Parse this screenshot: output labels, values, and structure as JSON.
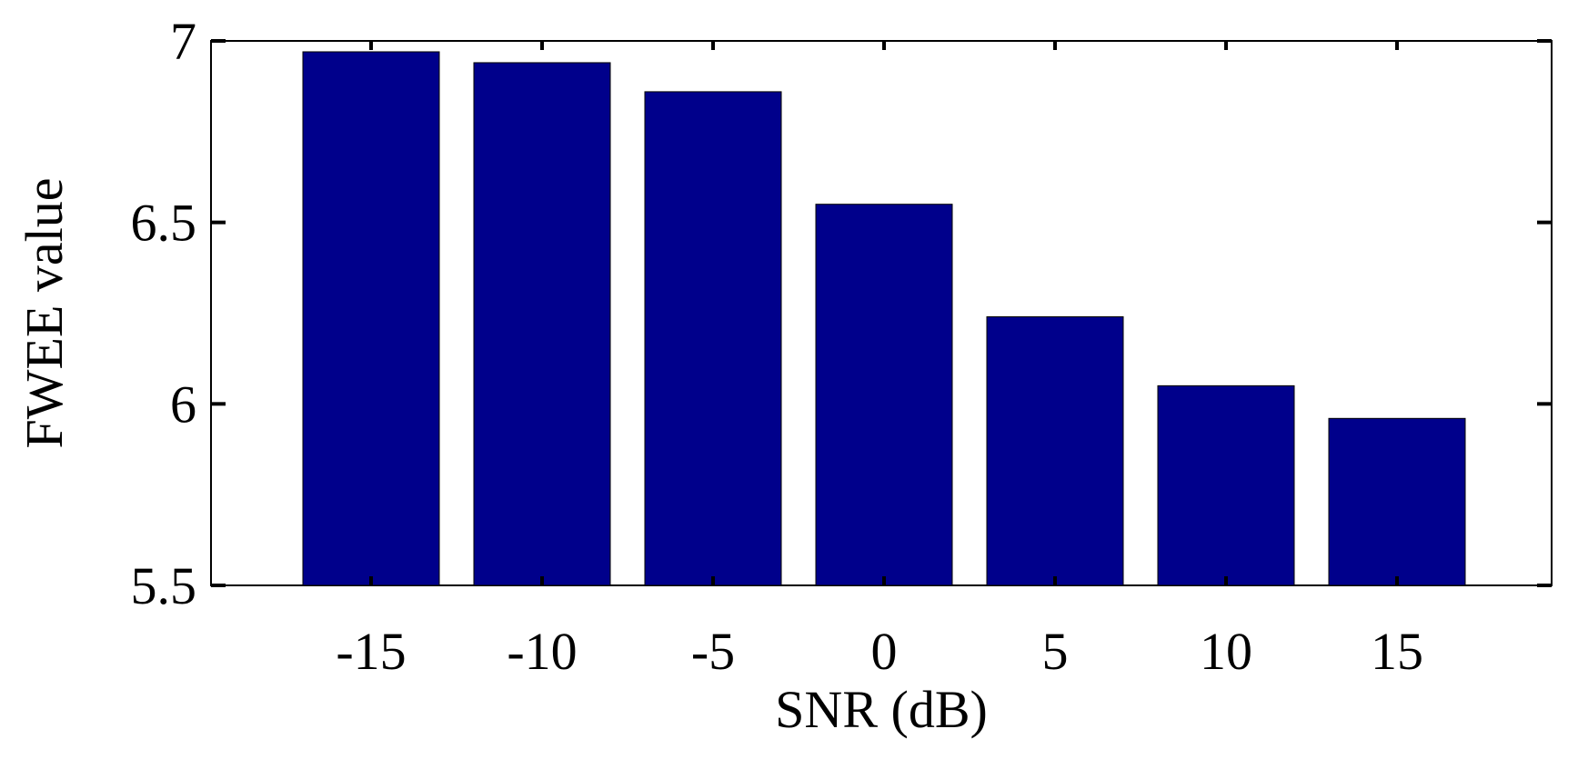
{
  "chart_data": {
    "type": "bar",
    "title": "",
    "xlabel": "SNR (dB)",
    "ylabel": "FWEE value",
    "categories": [
      "-15",
      "-10",
      "-5",
      "0",
      "5",
      "10",
      "15"
    ],
    "values": [
      6.97,
      6.94,
      6.86,
      6.55,
      6.24,
      6.05,
      5.96
    ],
    "ylim": [
      5.5,
      7
    ],
    "yticks": [
      "5.5",
      "6",
      "6.5",
      "7"
    ],
    "bar_color": "#00008B",
    "grid": false,
    "legend": "none"
  }
}
